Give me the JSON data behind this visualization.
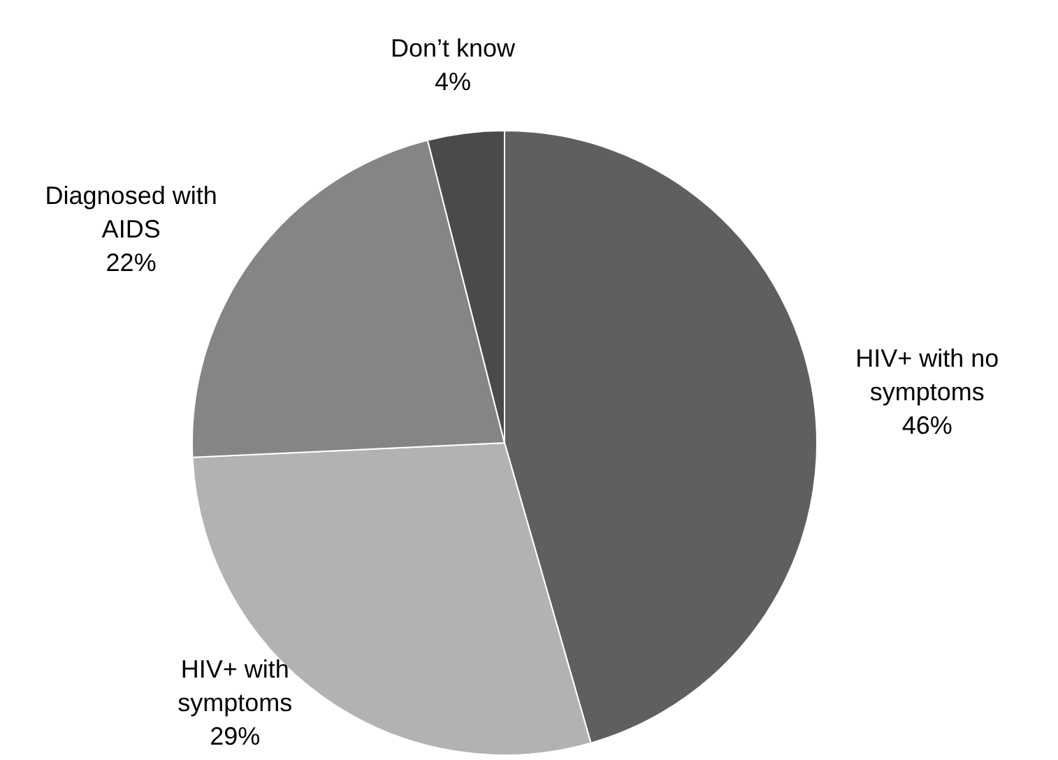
{
  "chart_data": {
    "type": "pie",
    "categories": [
      "HIV+ with no symptoms",
      "HIV+ with symptoms",
      "Diagnosed with AIDS",
      "Don’t know"
    ],
    "values": [
      46,
      29,
      22,
      4
    ],
    "colors": [
      "#5f5f5f",
      "#b2b2b2",
      "#858585",
      "#4a4a4a"
    ],
    "value_labels": [
      "46%",
      "29%",
      "22%",
      "4%"
    ],
    "legend": false
  }
}
